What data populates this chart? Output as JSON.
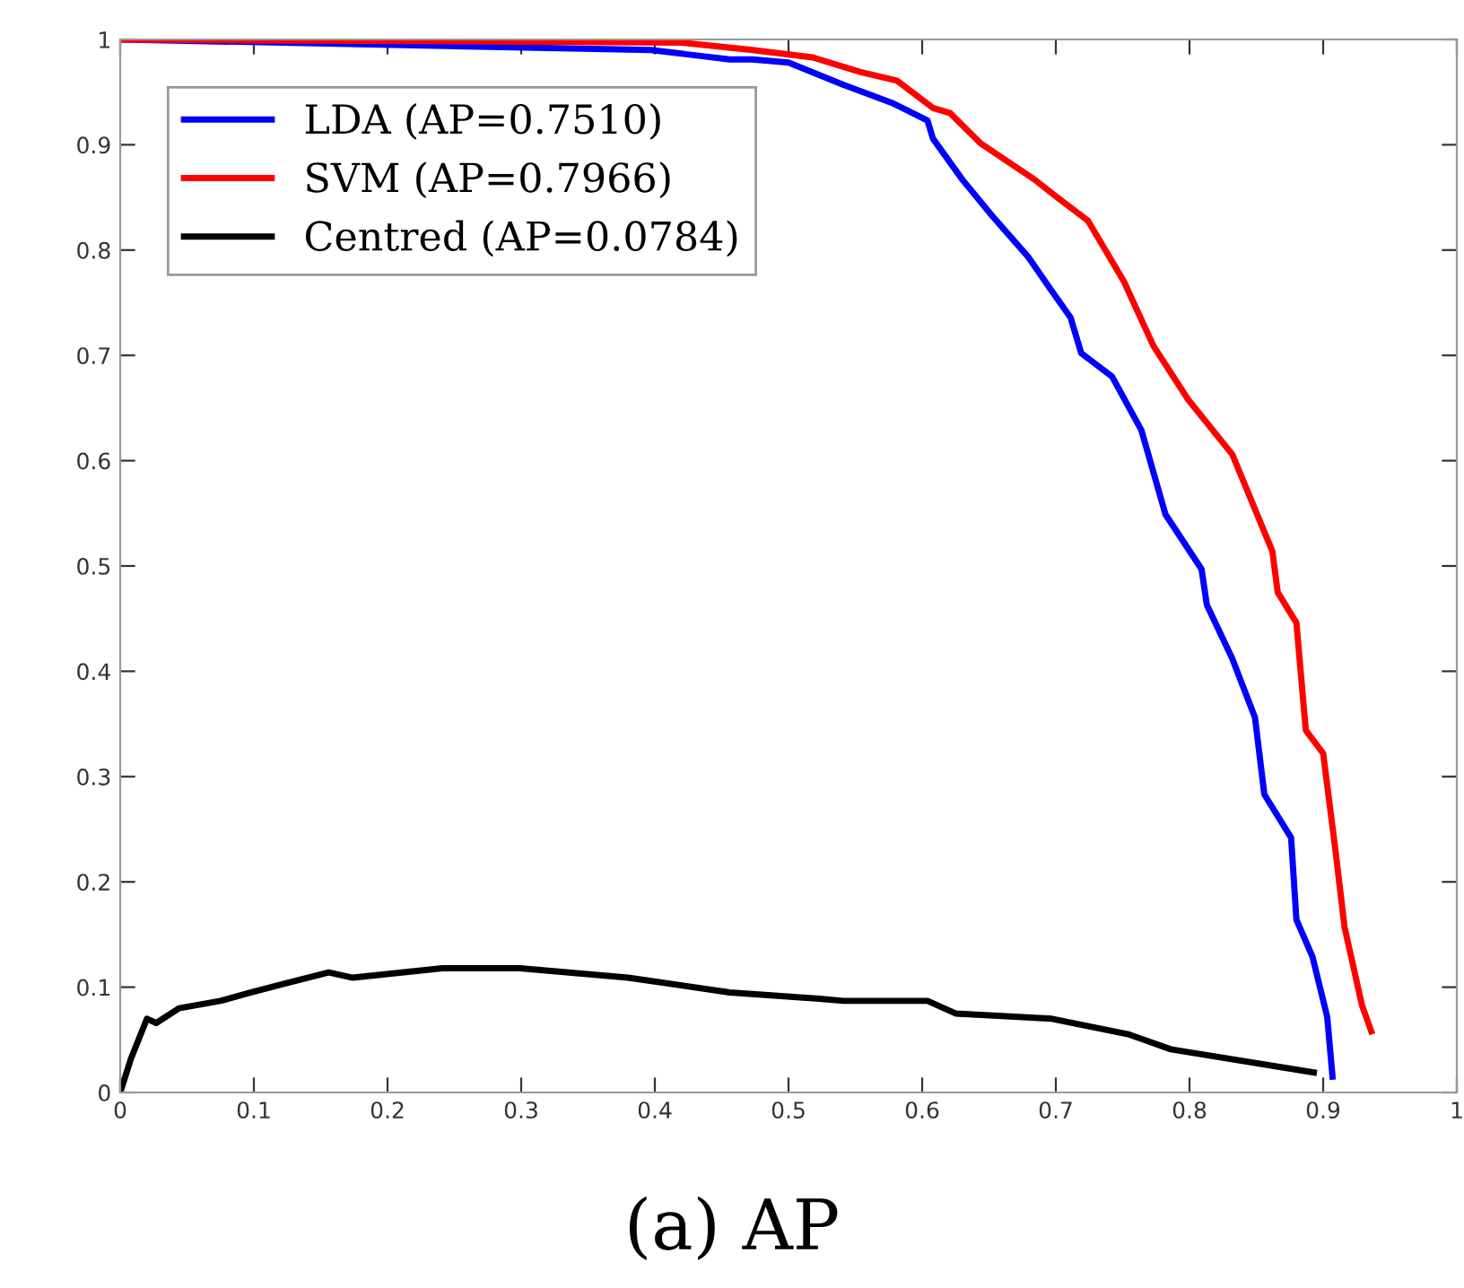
{
  "chart_data": {
    "type": "line",
    "title": "(a) AP",
    "xlim": [
      0,
      1
    ],
    "ylim": [
      0,
      1
    ],
    "xticks": [
      0,
      0.1,
      0.2,
      0.3,
      0.4,
      0.5,
      0.6,
      0.7,
      0.8,
      0.9,
      1
    ],
    "yticks": [
      0,
      0.1,
      0.2,
      0.3,
      0.4,
      0.5,
      0.6,
      0.7,
      0.8,
      0.9,
      1
    ],
    "grid": false,
    "legend": "top left",
    "marker": "none",
    "line_style": "solid",
    "series": [
      {
        "name": "LDA (AP=0.7510)",
        "color": "#0000ff",
        "x": [
          0,
          0.397,
          0.456,
          0.473,
          0.5,
          0.541,
          0.577,
          0.604,
          0.608,
          0.63,
          0.652,
          0.679,
          0.697,
          0.711,
          0.719,
          0.742,
          0.764,
          0.782,
          0.809,
          0.813,
          0.832,
          0.849,
          0.856,
          0.876,
          0.88,
          0.892,
          0.903,
          0.907
        ],
        "values": [
          1,
          0.99,
          0.981,
          0.981,
          0.978,
          0.957,
          0.94,
          0.923,
          0.906,
          0.867,
          0.833,
          0.794,
          0.761,
          0.736,
          0.702,
          0.68,
          0.629,
          0.549,
          0.497,
          0.463,
          0.412,
          0.356,
          0.283,
          0.242,
          0.164,
          0.129,
          0.072,
          0.015
        ]
      },
      {
        "name": "SVM (AP=0.7966)",
        "color": "#ff0000",
        "x": [
          0,
          0.42,
          0.473,
          0.518,
          0.554,
          0.581,
          0.608,
          0.621,
          0.644,
          0.684,
          0.701,
          0.724,
          0.751,
          0.773,
          0.799,
          0.832,
          0.862,
          0.866,
          0.88,
          0.887,
          0.9,
          0.909,
          0.916,
          0.929,
          0.936
        ],
        "values": [
          1,
          0.997,
          0.99,
          0.983,
          0.969,
          0.961,
          0.935,
          0.93,
          0.901,
          0.867,
          0.85,
          0.828,
          0.77,
          0.709,
          0.658,
          0.606,
          0.514,
          0.475,
          0.446,
          0.344,
          0.322,
          0.232,
          0.157,
          0.083,
          0.058
        ]
      },
      {
        "name": "Centred (AP=0.0784)",
        "color": "#000000",
        "x": [
          0,
          0.008,
          0.02,
          0.027,
          0.044,
          0.075,
          0.098,
          0.125,
          0.156,
          0.174,
          0.241,
          0.299,
          0.38,
          0.456,
          0.523,
          0.541,
          0.604,
          0.625,
          0.697,
          0.755,
          0.786,
          0.893
        ],
        "values": [
          0,
          0.032,
          0.07,
          0.066,
          0.08,
          0.087,
          0.095,
          0.104,
          0.114,
          0.109,
          0.118,
          0.118,
          0.109,
          0.095,
          0.089,
          0.087,
          0.087,
          0.075,
          0.07,
          0.055,
          0.041,
          0.019
        ]
      }
    ]
  }
}
